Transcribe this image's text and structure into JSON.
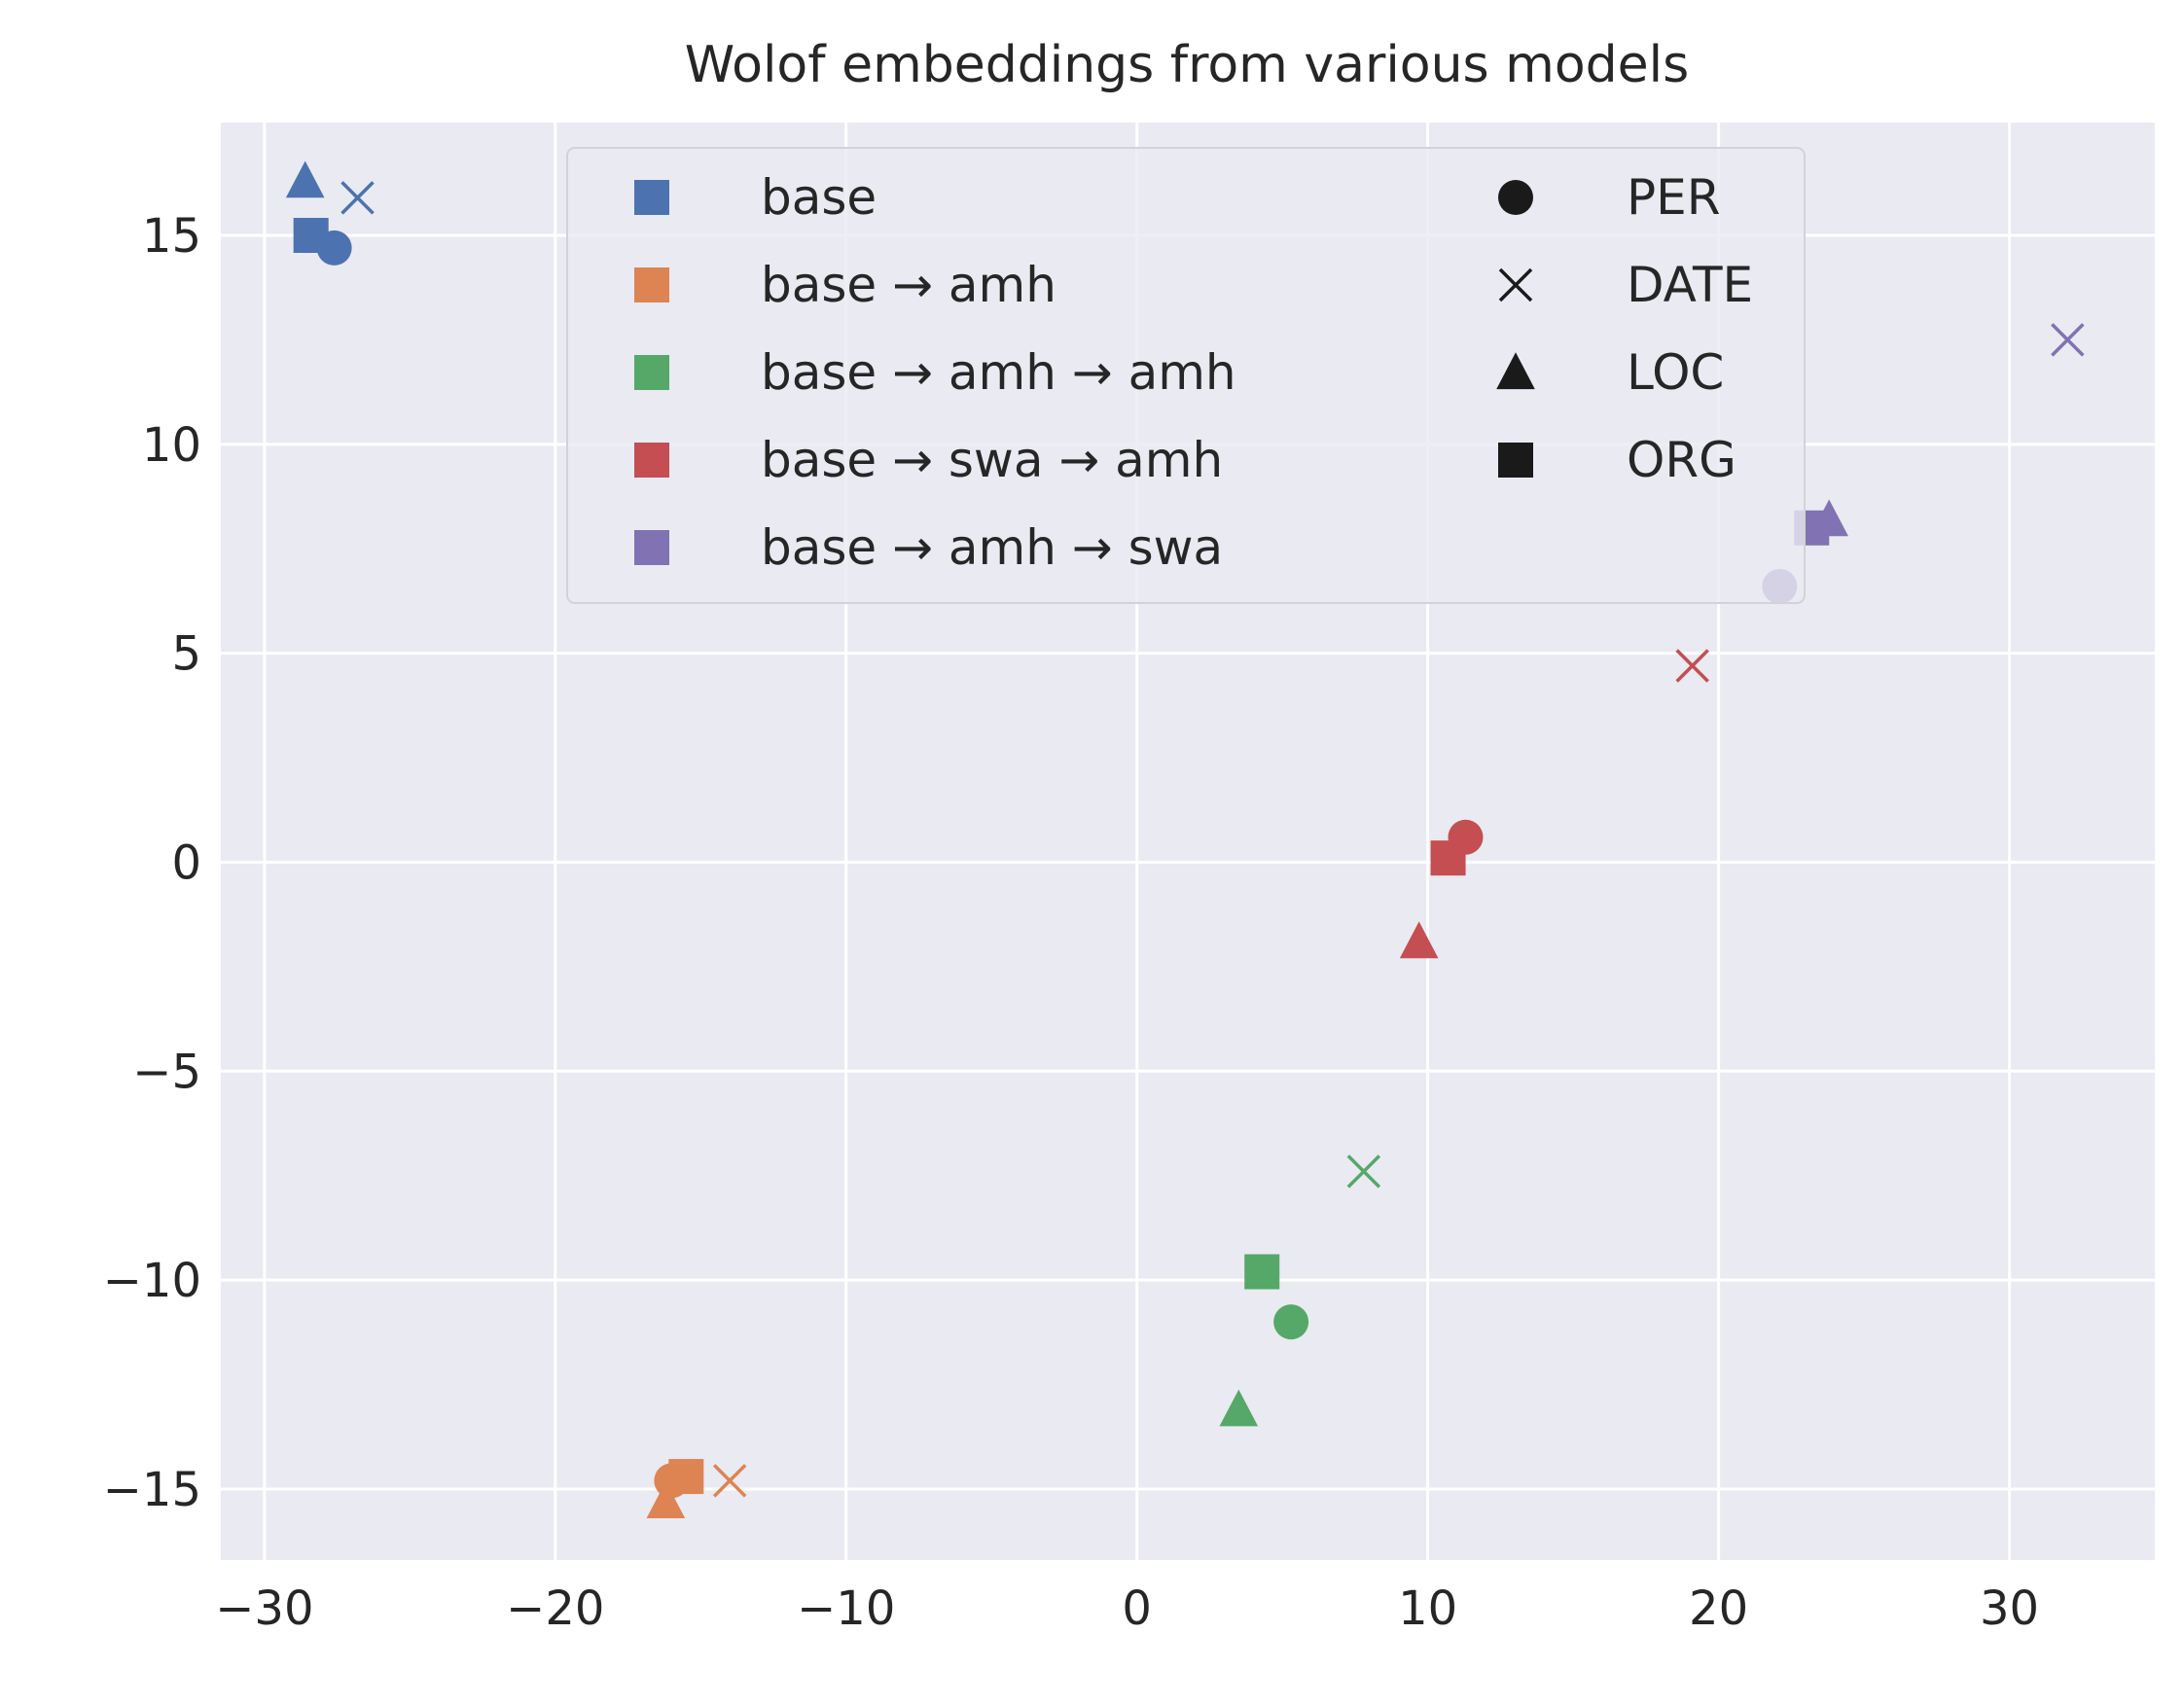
{
  "chart_data": {
    "type": "scatter",
    "title": "Wolof embeddings from various models",
    "xlabel": "",
    "ylabel": "",
    "xlim": [
      -31.5,
      35
    ],
    "ylim": [
      -16.7,
      17.7
    ],
    "x_ticks": [
      -30,
      -20,
      -10,
      0,
      10,
      20,
      30
    ],
    "y_ticks": [
      -15,
      -10,
      -5,
      0,
      5,
      10,
      15
    ],
    "x_tick_labels": [
      "−30",
      "−20",
      "−10",
      "0",
      "10",
      "20",
      "30"
    ],
    "y_tick_labels": [
      "−15",
      "−10",
      "−5",
      "0",
      "5",
      "10",
      "15"
    ],
    "grid": true,
    "background": "#EAEAF2",
    "legend_position": "top-center",
    "series": [
      {
        "name": "base",
        "color": "#4C72B0",
        "points": [
          {
            "entity": "PER",
            "x": -27.6,
            "y": 14.7
          },
          {
            "entity": "DATE",
            "x": -26.8,
            "y": 15.9
          },
          {
            "entity": "LOC",
            "x": -28.6,
            "y": 16.3
          },
          {
            "entity": "ORG",
            "x": -28.4,
            "y": 15.0
          }
        ]
      },
      {
        "name": "base → amh",
        "color": "#DD8452",
        "points": [
          {
            "entity": "PER",
            "x": -16.0,
            "y": -14.8
          },
          {
            "entity": "DATE",
            "x": -14.0,
            "y": -14.8
          },
          {
            "entity": "LOC",
            "x": -16.2,
            "y": -15.3
          },
          {
            "entity": "ORG",
            "x": -15.5,
            "y": -14.7
          }
        ]
      },
      {
        "name": "base → amh → amh",
        "color": "#55A868",
        "points": [
          {
            "entity": "PER",
            "x": 5.3,
            "y": -11.0
          },
          {
            "entity": "DATE",
            "x": 7.8,
            "y": -7.4
          },
          {
            "entity": "LOC",
            "x": 3.5,
            "y": -13.1
          },
          {
            "entity": "ORG",
            "x": 4.3,
            "y": -9.8
          }
        ]
      },
      {
        "name": "base → swa → amh",
        "color": "#C44E52",
        "points": [
          {
            "entity": "PER",
            "x": 11.3,
            "y": 0.6
          },
          {
            "entity": "DATE",
            "x": 19.1,
            "y": 4.7
          },
          {
            "entity": "LOC",
            "x": 9.7,
            "y": -1.9
          },
          {
            "entity": "ORG",
            "x": 10.7,
            "y": 0.1
          }
        ]
      },
      {
        "name": "base → amh → swa",
        "color": "#8172B3",
        "points": [
          {
            "entity": "PER",
            "x": 22.1,
            "y": 6.6
          },
          {
            "entity": "DATE",
            "x": 32.0,
            "y": 12.5
          },
          {
            "entity": "LOC",
            "x": 23.8,
            "y": 8.2
          },
          {
            "entity": "ORG",
            "x": 23.2,
            "y": 8.0
          }
        ]
      }
    ],
    "marker_legend": [
      {
        "name": "PER",
        "marker": "circle"
      },
      {
        "name": "DATE",
        "marker": "x"
      },
      {
        "name": "LOC",
        "marker": "triangle"
      },
      {
        "name": "ORG",
        "marker": "square"
      }
    ]
  }
}
